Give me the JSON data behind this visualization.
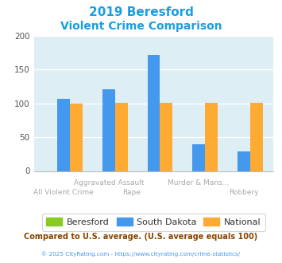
{
  "title_line1": "2019 Beresford",
  "title_line2": "Violent Crime Comparison",
  "title_color": "#1a9ee0",
  "groups": [
    {
      "label_top": "All Violent Crime",
      "label_bottom": "",
      "beresford": 0,
      "south_dakota": 106,
      "national": 100
    },
    {
      "label_top": "Aggravated Assault",
      "label_bottom": "Rape",
      "beresford": 0,
      "south_dakota": 121,
      "national": 101
    },
    {
      "label_top": "Murder & Mans...",
      "label_bottom": "Robbery",
      "beresford": 0,
      "south_dakota": 171,
      "national": 101
    },
    {
      "label_top": "",
      "label_bottom": "",
      "beresford": 0,
      "south_dakota": 40,
      "national": 101
    },
    {
      "label_top": "",
      "label_bottom": "",
      "beresford": 0,
      "south_dakota": 29,
      "national": 101
    }
  ],
  "color_beresford": "#88cc22",
  "color_south_dakota": "#4499ee",
  "color_national": "#ffaa33",
  "plot_bg": "#ddeef5",
  "ylim": [
    0,
    200
  ],
  "yticks": [
    0,
    50,
    100,
    150,
    200
  ],
  "bar_width": 0.28,
  "legend_labels": [
    "Beresford",
    "South Dakota",
    "National"
  ],
  "footer_text": "Compared to U.S. average. (U.S. average equals 100)",
  "footer_color": "#884400",
  "copyright_text": "© 2025 CityRating.com - https://www.cityrating.com/crime-statistics/",
  "copyright_color": "#4499ee",
  "x_label_color": "#aaaaaa"
}
